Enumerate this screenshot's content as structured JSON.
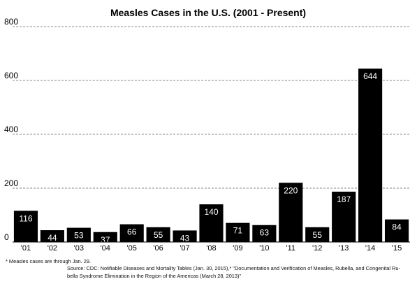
{
  "chart_data": {
    "type": "bar",
    "title": "Measles Cases in the U.S. (2001 - Present)",
    "xlabel": "",
    "ylabel": "",
    "categories": [
      "'01",
      "'02",
      "'03",
      "'04",
      "'05",
      "'06",
      "'07",
      "'08",
      "'09",
      "'10",
      "'11",
      "'12",
      "'13",
      "'14",
      "'15"
    ],
    "values": [
      116,
      44,
      53,
      37,
      66,
      55,
      43,
      140,
      71,
      63,
      220,
      55,
      187,
      644,
      84
    ],
    "value_labels": [
      "116",
      "44",
      "53",
      "37",
      "66",
      "55",
      "43",
      "140",
      "71",
      "63",
      "220",
      "55",
      "187",
      "644",
      "84"
    ],
    "ylim": [
      0,
      800
    ],
    "yticks": [
      0,
      200,
      400,
      600,
      800
    ],
    "ytick_labels": [
      "0",
      "200",
      "400",
      "600",
      "800"
    ],
    "grid": true,
    "grid_style": "dashed",
    "bar_color": "#000000",
    "label_color": "#ffffff"
  },
  "footnotes": {
    "note": "* Measles cases are through Jan. 29.",
    "source_line1": "Source: CDC: Notifiable Diseases and Mortality Tables (Jan. 30, 2015),* \"Documentation and Verification of Measles, Rubella, and Congenital Ru-",
    "source_line2": "bella Syndrome Elimination in the Region of the Americas (March 28, 2013)\""
  }
}
